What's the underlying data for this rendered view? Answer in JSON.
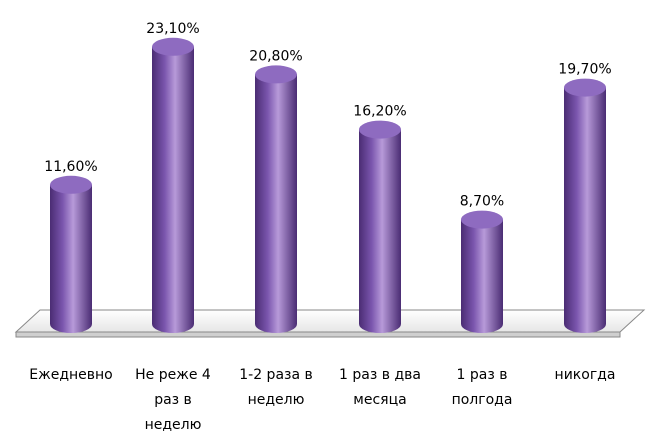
{
  "chart_data": {
    "type": "bar",
    "style": "3d-cylinder",
    "categories": [
      "Ежедневно",
      "Не реже 4 раз в неделю",
      "1-2 раза в неделю",
      "1 раз в два месяца",
      "1 раз в полгода",
      "никогда"
    ],
    "category_lines": [
      [
        "Ежедневно"
      ],
      [
        "Не реже 4",
        "раз в",
        "неделю"
      ],
      [
        "1-2 раза в",
        "неделю"
      ],
      [
        "1 раз в два",
        "месяца"
      ],
      [
        "1 раз в",
        "полгода"
      ],
      [
        "никогда"
      ]
    ],
    "values": [
      11.6,
      23.1,
      20.8,
      16.2,
      8.7,
      19.7
    ],
    "value_labels": [
      "11,60%",
      "23,10%",
      "20,80%",
      "16,20%",
      "8,70%",
      "19,70%"
    ],
    "ylim": [
      0,
      25
    ],
    "grid": false,
    "legend": "none",
    "colors": {
      "bar": "#7a55ad",
      "bar_highlight": "#b79ad9",
      "bar_shadow": "#4a2c73",
      "bar_top": "#8e6bc0",
      "floor_fill": "#ffffff",
      "floor_stroke": "#888888"
    }
  }
}
